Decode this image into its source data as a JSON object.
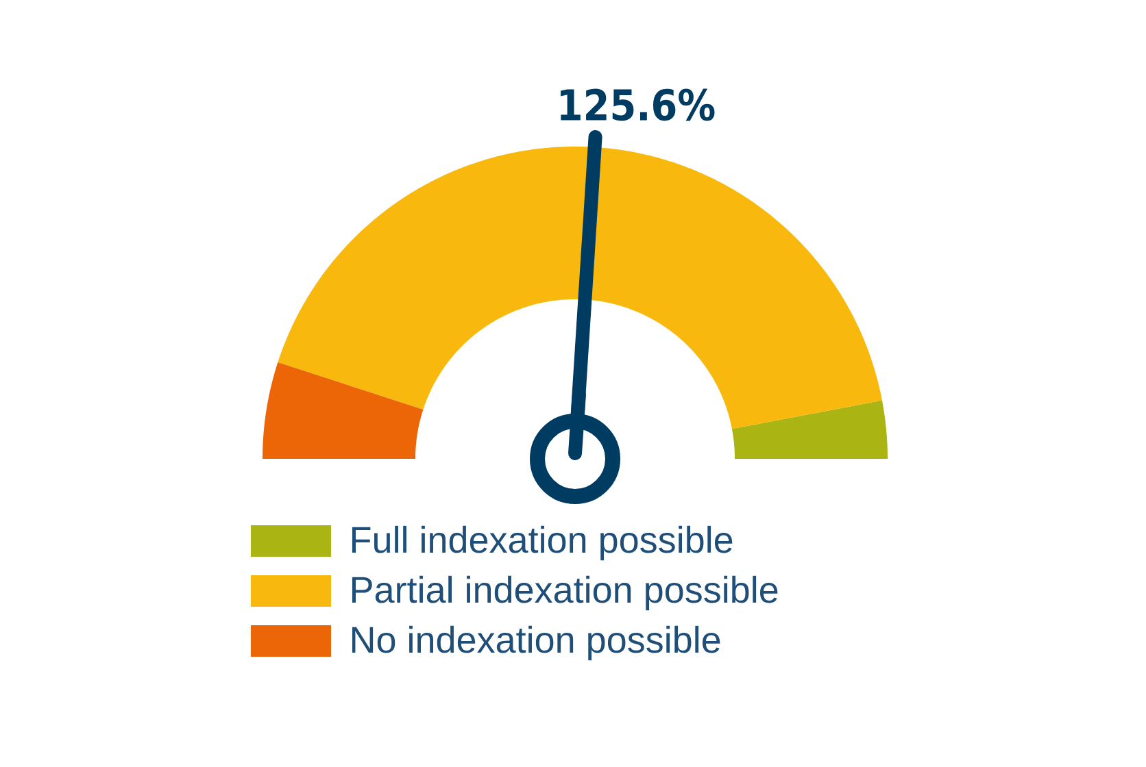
{
  "chart_data": {
    "type": "donut",
    "categories": [
      "Full indexation possible",
      "Partial indexation possible",
      "No indexation possible"
    ],
    "values": [
      6,
      84,
      10
    ],
    "colors": [
      "#aab514",
      "#f9b80d",
      "#ec6608"
    ],
    "needle": "Partial indexation possible",
    "legend": "bottom",
    "annotations": [
      "125.6%"
    ]
  }
}
